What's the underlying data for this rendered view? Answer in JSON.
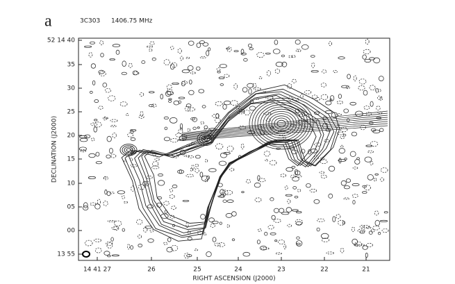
{
  "figure": {
    "panel": "a",
    "source": "3C303",
    "frequency": "1406.75 MHz",
    "y_axis": {
      "label": "DECLINATION (J2000)",
      "ticks": [
        "52 14 40",
        "35",
        "30",
        "25",
        "20",
        "15",
        "10",
        "05",
        "00",
        "13 55"
      ]
    },
    "x_axis": {
      "label": "RIGHT ASCENSION (J2000)",
      "ticks": [
        "14 41 27",
        "26",
        "25",
        "24",
        "23",
        "22",
        "21"
      ]
    }
  }
}
